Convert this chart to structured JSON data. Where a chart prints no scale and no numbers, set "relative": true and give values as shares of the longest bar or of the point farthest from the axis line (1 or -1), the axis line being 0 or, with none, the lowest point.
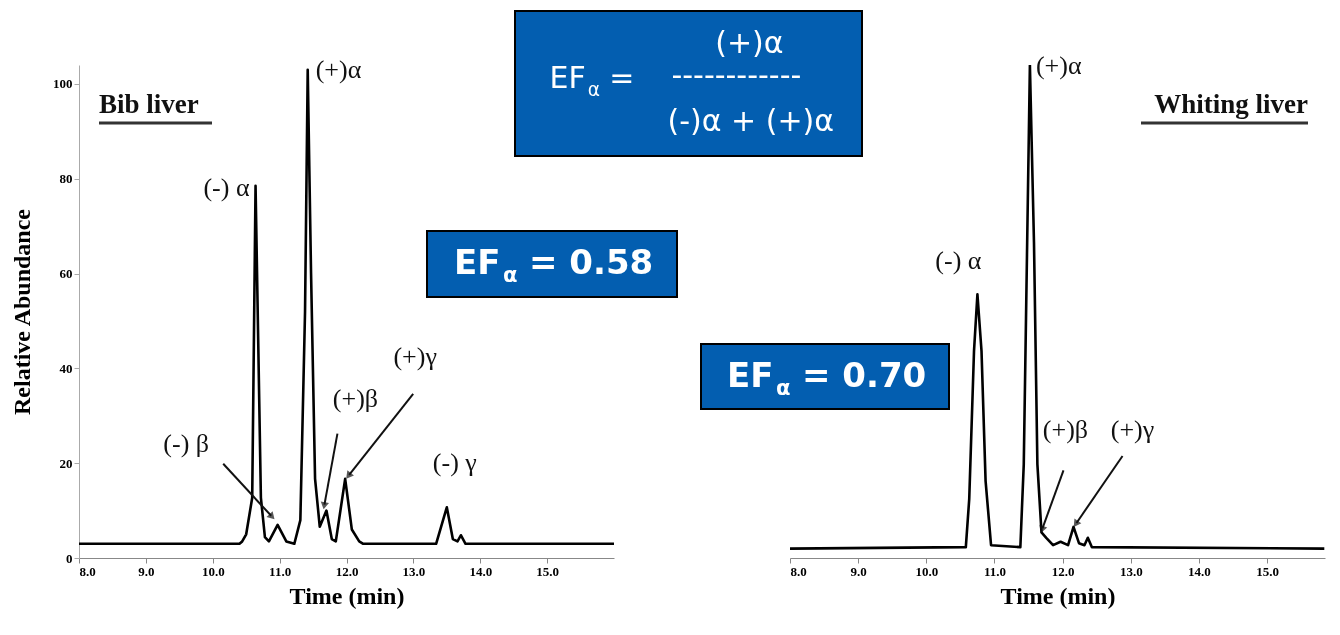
{
  "chart_data": [
    {
      "type": "line",
      "title": "Bib liver",
      "xlabel": "Time (min)",
      "ylabel": "Relative   Abundance",
      "xlim": [
        8,
        16
      ],
      "xticks": [
        {
          "value": 8,
          "label": "8.0"
        },
        {
          "value": 9,
          "label": "9.0"
        },
        {
          "value": 10,
          "label": "10.0"
        },
        {
          "value": 11,
          "label": "11.0"
        },
        {
          "value": 12,
          "label": "12.0"
        },
        {
          "value": 13,
          "label": "13.0"
        },
        {
          "value": 14,
          "label": "14.0"
        },
        {
          "value": 15,
          "label": "15.0"
        }
      ],
      "ylim": [
        0,
        104
      ],
      "yticks": [
        0,
        20,
        40,
        60,
        80,
        100
      ],
      "series": [
        {
          "color": "#000000",
          "x": [
            8.0,
            10.4,
            10.44,
            10.5,
            10.59,
            10.64,
            10.72,
            10.78,
            10.84,
            10.97,
            11.1,
            11.22,
            11.31,
            11.38,
            11.42,
            11.47,
            11.53,
            11.6,
            11.7,
            11.78,
            11.84,
            11.98,
            12.08,
            12.19,
            12.25,
            13.34,
            13.5,
            13.59,
            13.66,
            13.71,
            13.78,
            16.0
          ],
          "values": [
            3,
            3,
            3.5,
            5,
            12.7,
            78.5,
            12.7,
            4.4,
            3.5,
            7,
            3.5,
            3,
            8,
            52,
            103,
            60,
            16.7,
            6.6,
            10,
            4,
            3.5,
            16.7,
            6,
            3.5,
            3,
            3,
            10.7,
            4,
            3.5,
            4.8,
            3,
            3
          ]
        }
      ],
      "annotations": [
        {
          "text": "(+)α",
          "x": 11.42,
          "y": 103
        },
        {
          "text": "(-) α",
          "x": 10.64,
          "y": 78.5
        },
        {
          "text": "(-) β",
          "x": 10.59,
          "y": 12.7
        },
        {
          "text": "(+)β",
          "x": 11.7,
          "y": 10
        },
        {
          "text": "(+)γ",
          "x": 11.98,
          "y": 16.7
        },
        {
          "text": "(-) γ",
          "x": 13.5,
          "y": 10.7
        },
        "EF$_{α}$ = 0.58",
        "EF$_{α}$ =",
        "(+)α",
        "------------",
        "(-)α + (+)α"
      ]
    },
    {
      "type": "line",
      "title": "Whiting liver",
      "xlabel": "Time (min)",
      "relative": true,
      "tick_labels": "x",
      "xlim": [
        8,
        15.85
      ],
      "xticks": [
        {
          "value": 8,
          "label": "8.0"
        },
        {
          "value": 9,
          "label": "9.0"
        },
        {
          "value": 10,
          "label": "10.0"
        },
        {
          "value": 11,
          "label": "11.0"
        },
        {
          "value": 12,
          "label": "12.0"
        },
        {
          "value": 13,
          "label": "13.0"
        },
        {
          "value": 14,
          "label": "14.0"
        },
        {
          "value": 15,
          "label": "15.0"
        }
      ],
      "series": [
        {
          "color": "#000000",
          "x": [
            8.0,
            10.58,
            10.63,
            10.7,
            10.75,
            10.81,
            10.87,
            10.95,
            11.38,
            11.43,
            11.48,
            11.52,
            11.58,
            11.63,
            11.69,
            11.76,
            11.86,
            11.97,
            12.08,
            12.16,
            12.24,
            12.32,
            12.37,
            12.43,
            15.84
          ],
          "values": [
            0.019,
            0.022,
            0.12,
            0.42,
            0.535,
            0.42,
            0.156,
            0.026,
            0.022,
            0.19,
            0.64,
            1.0,
            0.64,
            0.19,
            0.052,
            0.041,
            0.026,
            0.033,
            0.026,
            0.063,
            0.03,
            0.026,
            0.041,
            0.022,
            0.019
          ]
        }
      ],
      "annotations": [
        {
          "text": "(+)α",
          "x": 11.52,
          "y": 1.0
        },
        {
          "text": "(-) α",
          "x": 10.75,
          "y": 0.535
        },
        {
          "text": "(+)β",
          "x": 11.69,
          "y": 0.052
        },
        {
          "text": "(+)γ",
          "x": 12.16,
          "y": 0.063
        },
        "EF$_{α}$ = 0.70"
      ]
    }
  ]
}
